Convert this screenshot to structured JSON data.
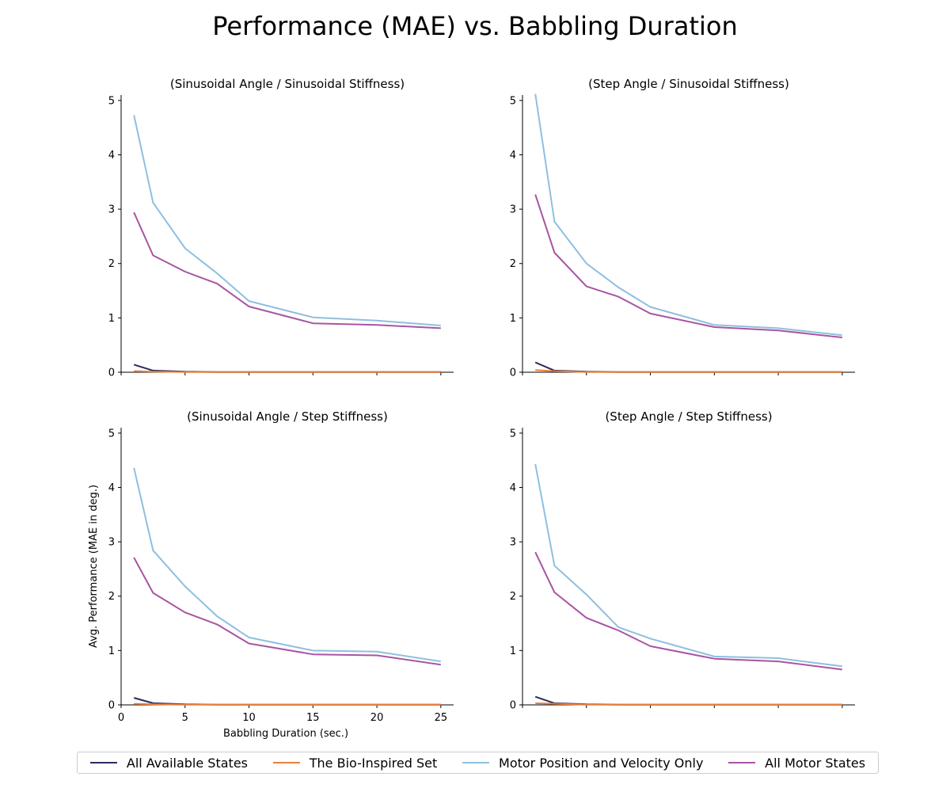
{
  "figure": {
    "title": "Performance (MAE) vs. Babbling Duration"
  },
  "legend": [
    {
      "name": "All Available States",
      "color": "#2b2d5c"
    },
    {
      "name": "The Bio-Inspired Set",
      "color": "#e8803a"
    },
    {
      "name": "Motor Position and Velocity Only",
      "color": "#8fbfe0"
    },
    {
      "name": "All Motor States",
      "color": "#a855a2"
    }
  ],
  "chart_data": [
    {
      "type": "line",
      "title": "(Sinusoidal Angle / Sinusoidal Stiffness)",
      "x": [
        1,
        2.5,
        5,
        7.5,
        10,
        15,
        20,
        25
      ],
      "xlim": [
        0,
        26
      ],
      "ylim": [
        0,
        5.1
      ],
      "xticks": [
        0,
        5,
        10,
        15,
        20,
        25
      ],
      "yticks": [
        0,
        1,
        2,
        3,
        4,
        5
      ],
      "xlabel": "",
      "ylabel": "",
      "show_xtick_labels": false,
      "series": [
        {
          "name": "All Available States",
          "values": [
            0.14,
            0.03,
            0.01,
            0.005,
            0.005,
            0.005,
            0.005,
            0.005
          ]
        },
        {
          "name": "The Bio-Inspired Set",
          "values": [
            0.02,
            0.01,
            0.005,
            0.005,
            0.005,
            0.005,
            0.005,
            0.005
          ]
        },
        {
          "name": "Motor Position and Velocity Only",
          "values": [
            4.73,
            3.12,
            2.28,
            1.82,
            1.31,
            1.01,
            0.95,
            0.86
          ]
        },
        {
          "name": "All Motor States",
          "values": [
            2.94,
            2.15,
            1.85,
            1.63,
            1.21,
            0.9,
            0.87,
            0.81
          ]
        }
      ]
    },
    {
      "type": "line",
      "title": "(Step Angle / Sinusoidal Stiffness)",
      "x": [
        1,
        2.5,
        5,
        7.5,
        10,
        15,
        20,
        25
      ],
      "xlim": [
        0,
        26
      ],
      "ylim": [
        0,
        5.1
      ],
      "xticks": [
        0,
        5,
        10,
        15,
        20,
        25
      ],
      "yticks": [
        0,
        1,
        2,
        3,
        4,
        5
      ],
      "xlabel": "",
      "ylabel": "",
      "show_xtick_labels": false,
      "series": [
        {
          "name": "All Available States",
          "values": [
            0.18,
            0.03,
            0.01,
            0.005,
            0.005,
            0.005,
            0.005,
            0.005
          ]
        },
        {
          "name": "The Bio-Inspired Set",
          "values": [
            0.04,
            0.02,
            0.005,
            0.005,
            0.005,
            0.005,
            0.005,
            0.005
          ]
        },
        {
          "name": "Motor Position and Velocity Only",
          "values": [
            5.12,
            2.77,
            2.0,
            1.56,
            1.2,
            0.87,
            0.81,
            0.68
          ]
        },
        {
          "name": "All Motor States",
          "values": [
            3.27,
            2.2,
            1.58,
            1.39,
            1.08,
            0.83,
            0.77,
            0.64
          ]
        }
      ]
    },
    {
      "type": "line",
      "title": "(Sinusoidal Angle / Step Stiffness)",
      "x": [
        1,
        2.5,
        5,
        7.5,
        10,
        15,
        20,
        25
      ],
      "xlim": [
        0,
        26
      ],
      "ylim": [
        0,
        5.1
      ],
      "xticks": [
        0,
        5,
        10,
        15,
        20,
        25
      ],
      "yticks": [
        0,
        1,
        2,
        3,
        4,
        5
      ],
      "xlabel": "Babbling Duration (sec.)",
      "ylabel": "Avg. Performance (MAE in deg.)",
      "show_xtick_labels": true,
      "series": [
        {
          "name": "All Available States",
          "values": [
            0.13,
            0.03,
            0.01,
            0.005,
            0.005,
            0.005,
            0.005,
            0.005
          ]
        },
        {
          "name": "The Bio-Inspired Set",
          "values": [
            0.02,
            0.01,
            0.005,
            0.005,
            0.005,
            0.005,
            0.005,
            0.005
          ]
        },
        {
          "name": "Motor Position and Velocity Only",
          "values": [
            4.36,
            2.84,
            2.18,
            1.63,
            1.24,
            1.0,
            0.98,
            0.8
          ]
        },
        {
          "name": "All Motor States",
          "values": [
            2.71,
            2.06,
            1.7,
            1.48,
            1.13,
            0.93,
            0.91,
            0.74
          ]
        }
      ]
    },
    {
      "type": "line",
      "title": "(Step Angle / Step Stiffness)",
      "x": [
        1,
        2.5,
        5,
        7.5,
        10,
        15,
        20,
        25
      ],
      "xlim": [
        0,
        26
      ],
      "ylim": [
        0,
        5.1
      ],
      "xticks": [
        0,
        5,
        10,
        15,
        20,
        25
      ],
      "yticks": [
        0,
        1,
        2,
        3,
        4,
        5
      ],
      "xlabel": "",
      "ylabel": "",
      "show_xtick_labels": false,
      "series": [
        {
          "name": "All Available States",
          "values": [
            0.15,
            0.03,
            0.01,
            0.005,
            0.005,
            0.005,
            0.005,
            0.005
          ]
        },
        {
          "name": "The Bio-Inspired Set",
          "values": [
            0.03,
            0.02,
            0.005,
            0.005,
            0.005,
            0.005,
            0.005,
            0.005
          ]
        },
        {
          "name": "Motor Position and Velocity Only",
          "values": [
            4.43,
            2.56,
            2.03,
            1.43,
            1.22,
            0.89,
            0.86,
            0.71
          ]
        },
        {
          "name": "All Motor States",
          "values": [
            2.81,
            2.07,
            1.6,
            1.37,
            1.08,
            0.85,
            0.8,
            0.65
          ]
        }
      ]
    }
  ]
}
